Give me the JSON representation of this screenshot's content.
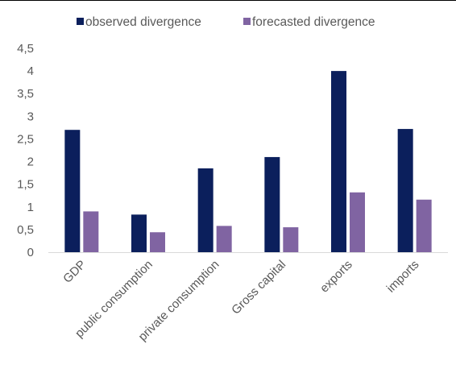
{
  "chart_data": {
    "type": "bar",
    "title": "",
    "xlabel": "",
    "ylabel": "",
    "ylim": [
      0,
      4.5
    ],
    "yticks": [
      "0",
      "0,5",
      "1",
      "1,5",
      "2",
      "2,5",
      "3",
      "3,5",
      "4",
      "4,5"
    ],
    "categories": [
      "GDP",
      "public consumption",
      "private consumption",
      "Gross capital",
      "exports",
      "imports"
    ],
    "series": [
      {
        "name": "observed divergence",
        "color": "#0b1f5c",
        "values": [
          2.7,
          0.83,
          1.85,
          2.1,
          4.0,
          2.72
        ]
      },
      {
        "name": "forecasted divergence",
        "color": "#8064a2",
        "values": [
          0.9,
          0.44,
          0.58,
          0.55,
          1.32,
          1.16
        ]
      }
    ],
    "grid": false,
    "legend_position": "top"
  }
}
